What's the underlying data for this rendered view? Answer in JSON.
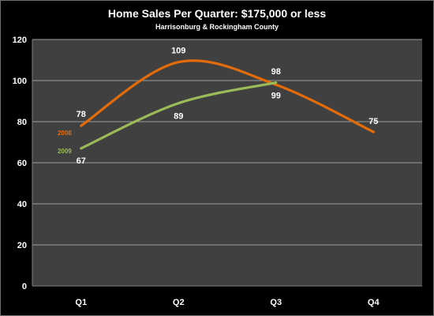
{
  "chart_data": {
    "type": "line",
    "title": "Home Sales Per Quarter: $175,000  or less",
    "subtitle": "Harrisonburg & Rockingham County",
    "categories": [
      "Q1",
      "Q2",
      "Q3",
      "Q4"
    ],
    "ylim": [
      0,
      120
    ],
    "yticks": [
      0,
      20,
      40,
      60,
      80,
      100,
      120
    ],
    "grid": true,
    "smooth": true,
    "series": [
      {
        "name": "2008",
        "values": [
          78,
          109,
          98,
          75
        ],
        "color": "#e36c0a"
      },
      {
        "name": "2009",
        "values": [
          67,
          89,
          99,
          null
        ],
        "color": "#9bbb59"
      }
    ]
  },
  "colors": {
    "page_background": "#000000",
    "plot_background": "#404040",
    "gridline": "#9a9a9a",
    "text": "#ffffff"
  }
}
